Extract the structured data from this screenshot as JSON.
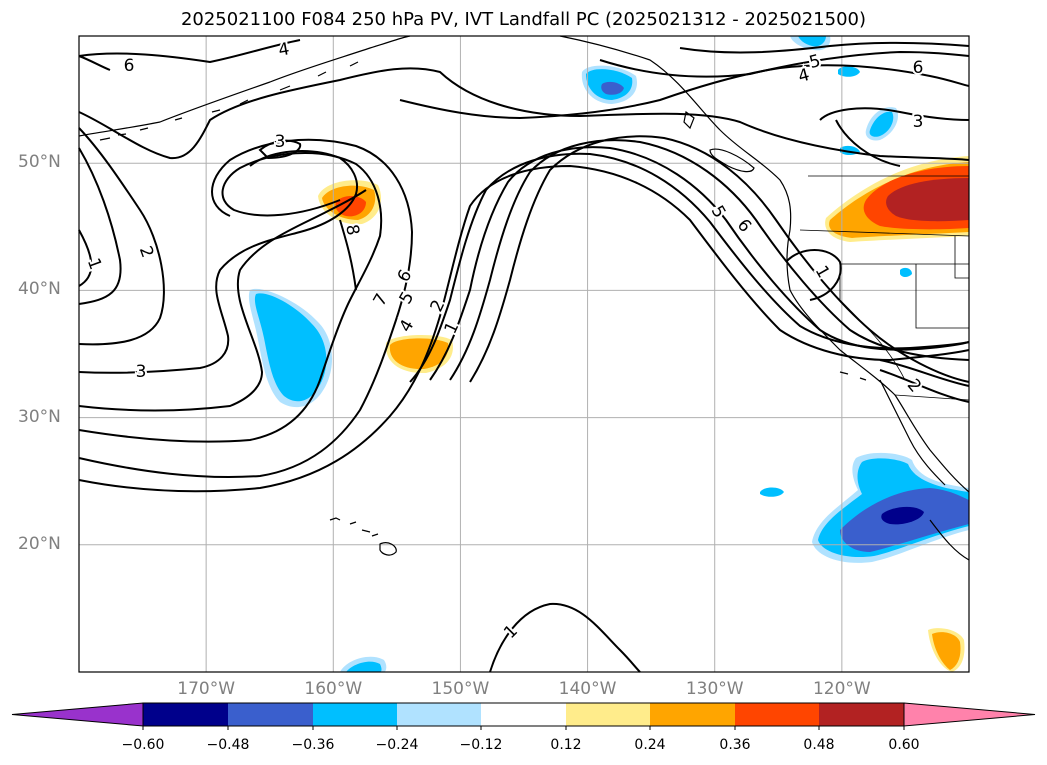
{
  "title": "2025021100 F084 250 hPa PV, IVT Landfall PC (2025021312 - 2025021500)",
  "map": {
    "lat_labels": [
      {
        "text": "50°N",
        "lat": 50
      },
      {
        "text": "40°N",
        "lat": 40
      },
      {
        "text": "30°N",
        "lat": 30
      },
      {
        "text": "20°N",
        "lat": 20
      }
    ],
    "lon_labels": [
      {
        "text": "170°W",
        "lon": -170
      },
      {
        "text": "160°W",
        "lon": -160
      },
      {
        "text": "150°W",
        "lon": -150
      },
      {
        "text": "140°W",
        "lon": -140
      },
      {
        "text": "130°W",
        "lon": -130
      },
      {
        "text": "120°W",
        "lon": -120
      }
    ],
    "lon_range": [
      -180,
      -110
    ],
    "lat_range": [
      10,
      60
    ],
    "pv_contour_labels": [
      "6",
      "4",
      "3",
      "2",
      "1",
      "3",
      "8",
      "7",
      "6",
      "5",
      "4",
      "2",
      "1",
      "5",
      "4",
      "6",
      "3",
      "5",
      "6",
      "1",
      "2",
      "1"
    ]
  },
  "colorbar": {
    "ticks": [
      "−0.60",
      "−0.48",
      "−0.36",
      "−0.24",
      "−0.12",
      "0.12",
      "0.24",
      "0.36",
      "0.48",
      "0.60"
    ],
    "colors": [
      "#9932cc",
      "#00008b",
      "#3a5fcd",
      "#00bfff",
      "#b0e2ff",
      "#ffffff",
      "#ffec8b",
      "#ffa500",
      "#ff4500",
      "#b22222",
      "#ff82ab"
    ]
  }
}
